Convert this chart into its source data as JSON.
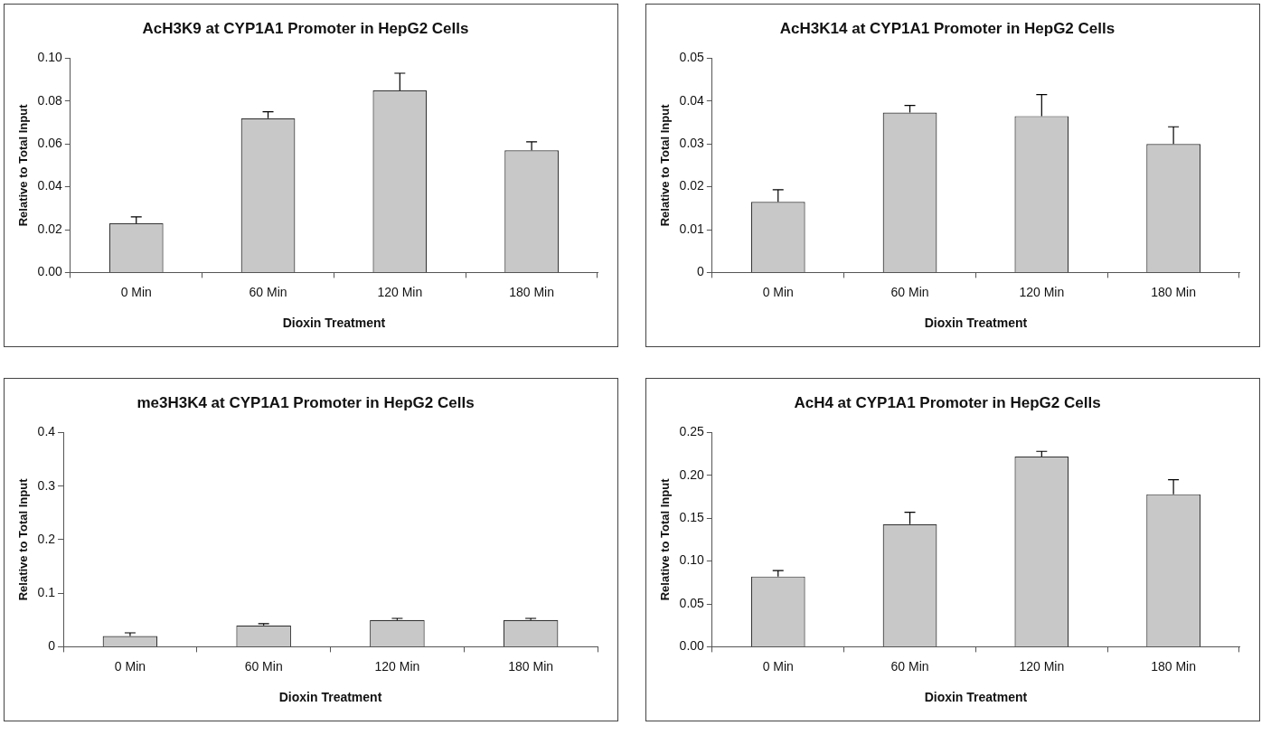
{
  "chart_data": [
    {
      "type": "bar",
      "title": "AcH3K9 at CYP1A1 Promoter in HepG2 Cells",
      "xlabel": "Dioxin Treatment",
      "ylabel": "Relative to Total Input",
      "categories": [
        "0 Min",
        "60 Min",
        "120 Min",
        "180 Min"
      ],
      "values": [
        0.023,
        0.072,
        0.085,
        0.057
      ],
      "errors": [
        [
          0.023,
          0.026
        ],
        [
          0.072,
          0.075
        ],
        [
          0.085,
          0.093
        ],
        [
          0.057,
          0.061
        ]
      ],
      "color": "#c8c8c8",
      "ylim": [
        0,
        0.1
      ],
      "yticks": [
        {
          "value": 0,
          "label": "0.00"
        },
        {
          "value": 0.02,
          "label": "0.02"
        },
        {
          "value": 0.04,
          "label": "0.04"
        },
        {
          "value": 0.06,
          "label": "0.06"
        },
        {
          "value": 0.08,
          "label": "0.08"
        },
        {
          "value": 0.1,
          "label": "0.10"
        }
      ],
      "grid": false,
      "legend": false
    },
    {
      "type": "bar",
      "title": "AcH3K14 at CYP1A1 Promoter in HepG2 Cells",
      "xlabel": "Dioxin Treatment",
      "ylabel": "Relative to Total Input",
      "categories": [
        "0 Min",
        "60 Min",
        "120 Min",
        "180 Min"
      ],
      "values": [
        0.0165,
        0.0373,
        0.0365,
        0.03
      ],
      "errors": [
        [
          0.0165,
          0.0193
        ],
        [
          0.0373,
          0.039
        ],
        [
          0.0365,
          0.0415
        ],
        [
          0.03,
          0.034
        ]
      ],
      "color": "#c8c8c8",
      "ylim": [
        0,
        0.05
      ],
      "yticks": [
        0,
        0.01,
        0.02,
        0.03,
        0.04,
        0.05
      ],
      "grid": false,
      "legend": false
    },
    {
      "type": "bar",
      "title": "me3H3K4 at CYP1A1 Promoter in HepG2 Cells",
      "xlabel": "Dioxin Treatment",
      "ylabel": "Relative to Total Input",
      "categories": [
        "0 Min",
        "60 Min",
        "120 Min",
        "180 Min"
      ],
      "values": [
        0.02,
        0.04,
        0.05,
        0.05
      ],
      "errors": [
        [
          0.02,
          0.026
        ],
        [
          0.04,
          0.043
        ],
        [
          0.05,
          0.053
        ],
        [
          0.05,
          0.053
        ]
      ],
      "color": "#c8c8c8",
      "ylim": [
        0,
        0.4
      ],
      "yticks": [
        0,
        0.1,
        0.2,
        0.3,
        0.4
      ],
      "grid": false,
      "legend": false
    },
    {
      "type": "bar",
      "title": "AcH4 at CYP1A1 Promoter in HepG2 Cells",
      "xlabel": "Dioxin Treatment",
      "ylabel": "Relative to Total Input",
      "categories": [
        "0 Min",
        "60 Min",
        "120 Min",
        "180 Min"
      ],
      "values": [
        0.082,
        0.143,
        0.222,
        0.178
      ],
      "errors": [
        [
          0.082,
          0.089
        ],
        [
          0.143,
          0.157
        ],
        [
          0.222,
          0.228
        ],
        [
          0.178,
          0.195
        ]
      ],
      "color": "#c8c8c8",
      "ylim": [
        0,
        0.25
      ],
      "yticks": [
        {
          "value": 0,
          "label": "0.00"
        },
        {
          "value": 0.05,
          "label": "0.05"
        },
        {
          "value": 0.1,
          "label": "0.10"
        },
        {
          "value": 0.15,
          "label": "0.15"
        },
        {
          "value": 0.2,
          "label": "0.20"
        },
        {
          "value": 0.25,
          "label": "0.25"
        }
      ],
      "grid": false,
      "legend": false
    }
  ]
}
